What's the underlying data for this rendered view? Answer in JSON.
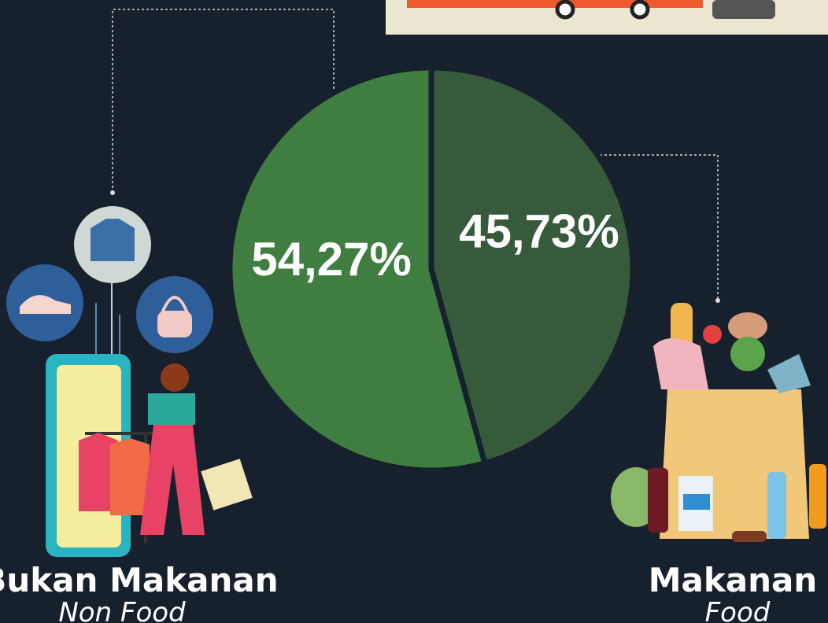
{
  "chart_data": {
    "type": "pie",
    "categories": [
      "Makanan",
      "Bukan Makanan"
    ],
    "subcategories": [
      "Food",
      "Non Food"
    ],
    "values": [
      45.73,
      54.27
    ],
    "value_labels": [
      "45,73%",
      "54,27%"
    ],
    "colors": [
      "#375a3b",
      "#3f7e40"
    ]
  }
}
